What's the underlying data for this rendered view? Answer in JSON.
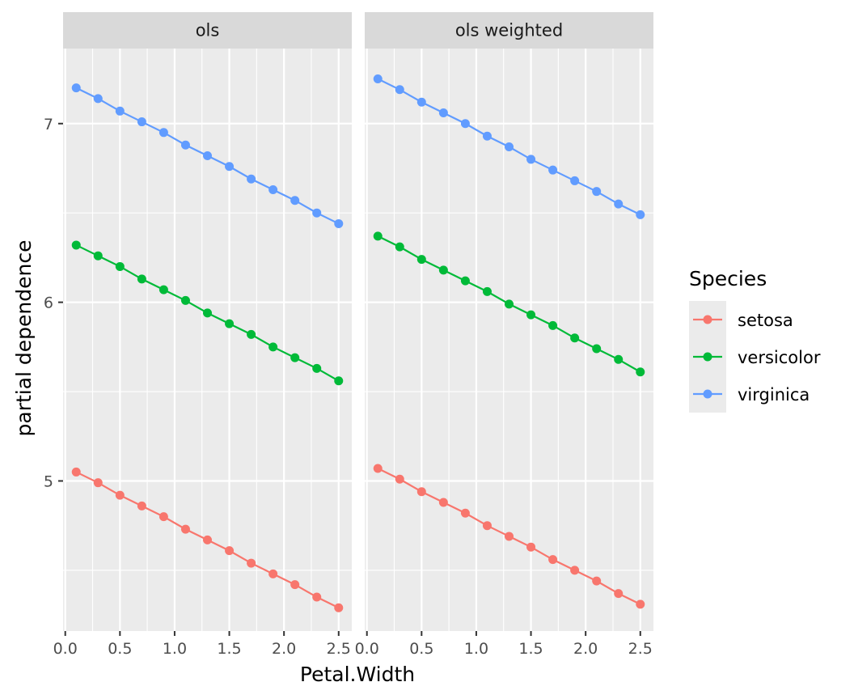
{
  "chart_data": {
    "type": "line",
    "xlabel": "Petal.Width",
    "ylabel": "partial dependence",
    "xlim": [
      -0.02,
      2.62
    ],
    "ylim": [
      4.16,
      7.42
    ],
    "x_ticks": [
      "0.0",
      "0.5",
      "1.0",
      "1.5",
      "2.0",
      "2.5"
    ],
    "x_tick_values": [
      0.0,
      0.5,
      1.0,
      1.5,
      2.0,
      2.5
    ],
    "y_ticks": [
      "5",
      "6",
      "7"
    ],
    "y_tick_values": [
      5,
      6,
      7
    ],
    "grid": true,
    "legend": {
      "title": "Species",
      "position": "right",
      "entries": [
        "setosa",
        "versicolor",
        "virginica"
      ]
    },
    "colors": {
      "setosa": "#F8766D",
      "versicolor": "#00BA38",
      "virginica": "#619CFF"
    },
    "x": [
      0.1,
      0.3,
      0.5,
      0.7,
      0.9,
      1.1,
      1.3,
      1.5,
      1.7,
      1.9,
      2.1,
      2.3,
      2.5
    ],
    "panels": [
      {
        "title": "ols",
        "series": [
          {
            "name": "setosa",
            "values": [
              5.05,
              4.99,
              4.92,
              4.86,
              4.8,
              4.73,
              4.67,
              4.61,
              4.54,
              4.48,
              4.42,
              4.35,
              4.29
            ]
          },
          {
            "name": "versicolor",
            "values": [
              6.32,
              6.26,
              6.2,
              6.13,
              6.07,
              6.01,
              5.94,
              5.88,
              5.82,
              5.75,
              5.69,
              5.63,
              5.56
            ]
          },
          {
            "name": "virginica",
            "values": [
              7.2,
              7.14,
              7.07,
              7.01,
              6.95,
              6.88,
              6.82,
              6.76,
              6.69,
              6.63,
              6.57,
              6.5,
              6.44
            ]
          }
        ]
      },
      {
        "title": "ols weighted",
        "series": [
          {
            "name": "setosa",
            "values": [
              5.07,
              5.01,
              4.94,
              4.88,
              4.82,
              4.75,
              4.69,
              4.63,
              4.56,
              4.5,
              4.44,
              4.37,
              4.31
            ]
          },
          {
            "name": "versicolor",
            "values": [
              6.37,
              6.31,
              6.24,
              6.18,
              6.12,
              6.06,
              5.99,
              5.93,
              5.87,
              5.8,
              5.74,
              5.68,
              5.61
            ]
          },
          {
            "name": "virginica",
            "values": [
              7.25,
              7.19,
              7.12,
              7.06,
              7.0,
              6.93,
              6.87,
              6.8,
              6.74,
              6.68,
              6.62,
              6.55,
              6.49
            ]
          }
        ]
      }
    ]
  }
}
